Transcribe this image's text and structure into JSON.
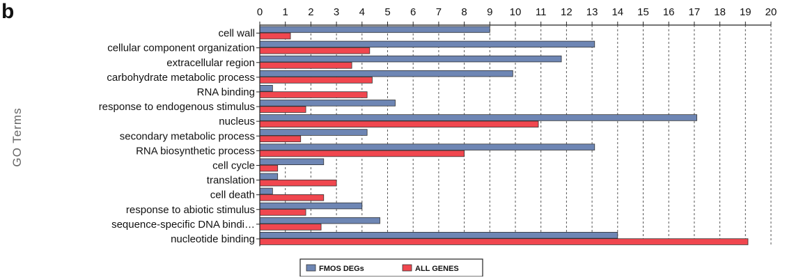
{
  "panel_label": "b",
  "chart_data": {
    "type": "bar",
    "orientation": "horizontal",
    "xlabel": "",
    "ylabel": "GO Terms",
    "xlim": [
      0,
      20
    ],
    "x_ticks": [
      "0",
      "1",
      "2",
      "3",
      "4",
      "5",
      "6",
      "7",
      "8",
      "9",
      "10",
      "11",
      "12",
      "13",
      "14",
      "15",
      "16",
      "17",
      "18",
      "19",
      "20"
    ],
    "x_axis_position": "top",
    "grid": "vertical dashed",
    "legend_position": "bottom-center",
    "categories": [
      "cell wall",
      "cellular component organization",
      "extracellular region",
      "carbohydrate metabolic process",
      "RNA binding",
      "response to endogenous stimulus",
      "nucleus",
      "secondary metabolic process",
      "RNA biosynthetic process",
      "cell cycle",
      "translation",
      "cell death",
      "response to abiotic stimulus",
      "sequence-specific DNA bindi…",
      "nucleotide binding"
    ],
    "series": [
      {
        "name": "FMOS DEGs",
        "color": "#6e86b4",
        "values": [
          9.0,
          13.1,
          11.8,
          9.9,
          0.5,
          5.3,
          17.1,
          4.2,
          13.1,
          2.5,
          0.7,
          0.5,
          4.0,
          4.7,
          14.0
        ]
      },
      {
        "name": "ALL GENES",
        "color": "#f0474f",
        "values": [
          1.2,
          4.3,
          3.6,
          4.4,
          4.2,
          1.8,
          10.9,
          1.6,
          8.0,
          0.7,
          3.0,
          2.5,
          1.8,
          2.4,
          19.1
        ]
      }
    ]
  }
}
